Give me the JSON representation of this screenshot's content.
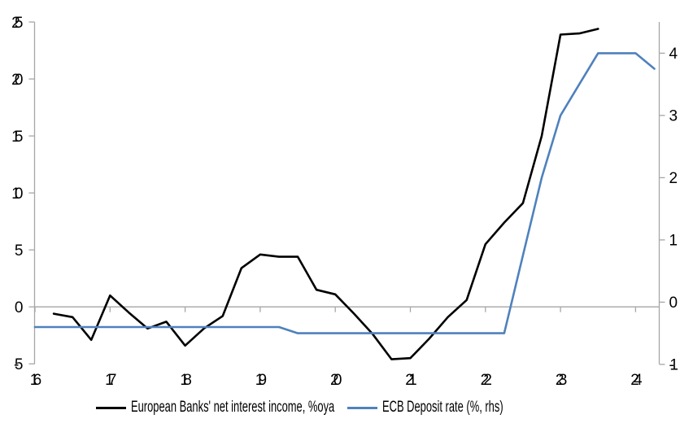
{
  "chart_data": {
    "type": "line",
    "title": "",
    "xlabel": "",
    "ylabel_left": "",
    "ylabel_right": "",
    "x_axis": {
      "ticks": [
        16,
        17,
        18,
        19,
        20,
        21,
        22,
        23,
        24
      ],
      "min": 16,
      "max": 24.32
    },
    "y_axis_left": {
      "ticks": [
        -5,
        0,
        5,
        10,
        15,
        20,
        25
      ],
      "min": -5,
      "max": 25
    },
    "y_axis_right": {
      "ticks": [
        -1,
        0,
        1,
        2,
        3,
        4
      ],
      "min": -1,
      "max": 4.5
    },
    "grid": "horizontal-zero-line-only",
    "legend_position": "bottom",
    "series": [
      {
        "name": "European Banks' net interest income, %oya",
        "color": "#000000",
        "axis": "left",
        "x": [
          16.25,
          16.5,
          16.75,
          17.0,
          17.25,
          17.5,
          17.75,
          18.0,
          18.25,
          18.5,
          18.75,
          19.0,
          19.25,
          19.5,
          19.75,
          20.0,
          20.25,
          20.5,
          20.75,
          21.0,
          21.25,
          21.5,
          21.75,
          22.0,
          22.25,
          22.5,
          22.75,
          23.0,
          23.25,
          23.5
        ],
        "values": [
          -0.6,
          -0.9,
          -2.9,
          1.0,
          -0.5,
          -1.9,
          -1.3,
          -3.4,
          -1.9,
          -0.8,
          3.4,
          4.6,
          4.4,
          4.4,
          1.5,
          1.1,
          -0.6,
          -2.4,
          -4.6,
          -4.5,
          -2.8,
          -0.9,
          0.6,
          5.5,
          7.4,
          9.1,
          15.0,
          23.9,
          24.0,
          24.4
        ]
      },
      {
        "name": "ECB Deposit rate (%, rhs)",
        "color": "#4F81BD",
        "axis": "right",
        "x": [
          16.0,
          16.25,
          16.5,
          16.75,
          17.0,
          17.25,
          17.5,
          17.75,
          18.0,
          18.25,
          18.5,
          18.75,
          19.0,
          19.25,
          19.5,
          19.75,
          20.0,
          20.25,
          20.5,
          20.75,
          21.0,
          21.25,
          21.5,
          21.75,
          22.0,
          22.25,
          22.5,
          22.75,
          23.0,
          23.25,
          23.5,
          23.75,
          24.0,
          24.25
        ],
        "values": [
          -0.4,
          -0.4,
          -0.4,
          -0.4,
          -0.4,
          -0.4,
          -0.4,
          -0.4,
          -0.4,
          -0.4,
          -0.4,
          -0.4,
          -0.4,
          -0.4,
          -0.5,
          -0.5,
          -0.5,
          -0.5,
          -0.5,
          -0.5,
          -0.5,
          -0.5,
          -0.5,
          -0.5,
          -0.5,
          -0.5,
          0.75,
          2.0,
          3.0,
          3.5,
          4.0,
          4.0,
          4.0,
          3.75
        ]
      }
    ],
    "colors": {
      "axis_line": "#A6A6A6",
      "zero_gridline": "#A6A6A6",
      "tick_label": "#000000",
      "background": "#FFFFFF"
    }
  },
  "legend": {
    "item1": "European Banks' net interest income, %oya",
    "item2": "ECB Deposit rate (%, rhs)"
  }
}
